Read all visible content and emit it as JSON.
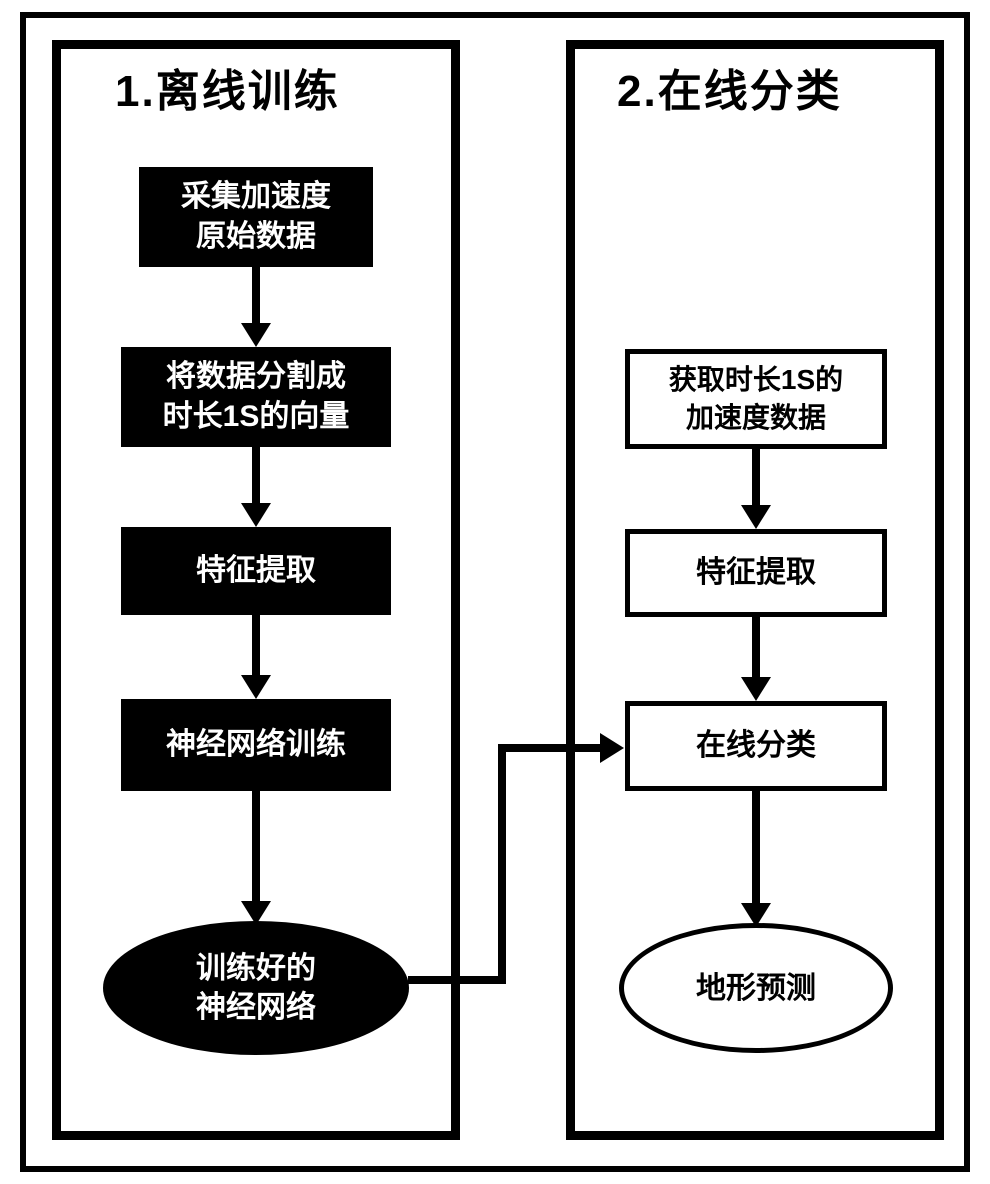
{
  "diagram": {
    "type": "flowchart",
    "background_color": "#ffffff",
    "border_color": "#000000",
    "panel_border_width": 9,
    "outer_border_width": 6,
    "title_fontsize": 44,
    "node_fontsize": 30,
    "node_fontsize_small": 28,
    "arrow_color": "#000000",
    "arrow_shaft_width": 8,
    "arrow_head_width": 30,
    "arrow_head_len": 24,
    "panels": {
      "left": {
        "title": "1.离线训练",
        "nodes": [
          {
            "id": "l1",
            "label": "采集加速度\n原始数据",
            "shape": "rect",
            "style": "dark"
          },
          {
            "id": "l2",
            "label": "将数据分割成\n时长1S的向量",
            "shape": "rect",
            "style": "dark"
          },
          {
            "id": "l3",
            "label": "特征提取",
            "shape": "rect",
            "style": "dark"
          },
          {
            "id": "l4",
            "label": "神经网络训练",
            "shape": "rect",
            "style": "dark"
          },
          {
            "id": "l5",
            "label": "训练好的\n神经网络",
            "shape": "ellipse",
            "style": "dark"
          }
        ],
        "edges": [
          {
            "from": "l1",
            "to": "l2"
          },
          {
            "from": "l2",
            "to": "l3"
          },
          {
            "from": "l3",
            "to": "l4"
          },
          {
            "from": "l4",
            "to": "l5"
          }
        ]
      },
      "right": {
        "title": "2.在线分类",
        "nodes": [
          {
            "id": "r1",
            "label": "获取时长1S的\n加速度数据",
            "shape": "rect",
            "style": "light"
          },
          {
            "id": "r2",
            "label": "特征提取",
            "shape": "rect",
            "style": "light"
          },
          {
            "id": "r3",
            "label": "在线分类",
            "shape": "rect",
            "style": "light"
          },
          {
            "id": "r4",
            "label": "地形预测",
            "shape": "ellipse",
            "style": "light"
          }
        ],
        "edges": [
          {
            "from": "r1",
            "to": "r2"
          },
          {
            "from": "r2",
            "to": "r3"
          },
          {
            "from": "r3",
            "to": "r4"
          }
        ]
      }
    },
    "cross_edges": [
      {
        "from": "l5",
        "to": "r3"
      }
    ],
    "colors": {
      "dark_fill": "#000000",
      "dark_text": "#ffffff",
      "light_fill": "#ffffff",
      "light_text": "#000000",
      "light_border": "#000000"
    }
  }
}
